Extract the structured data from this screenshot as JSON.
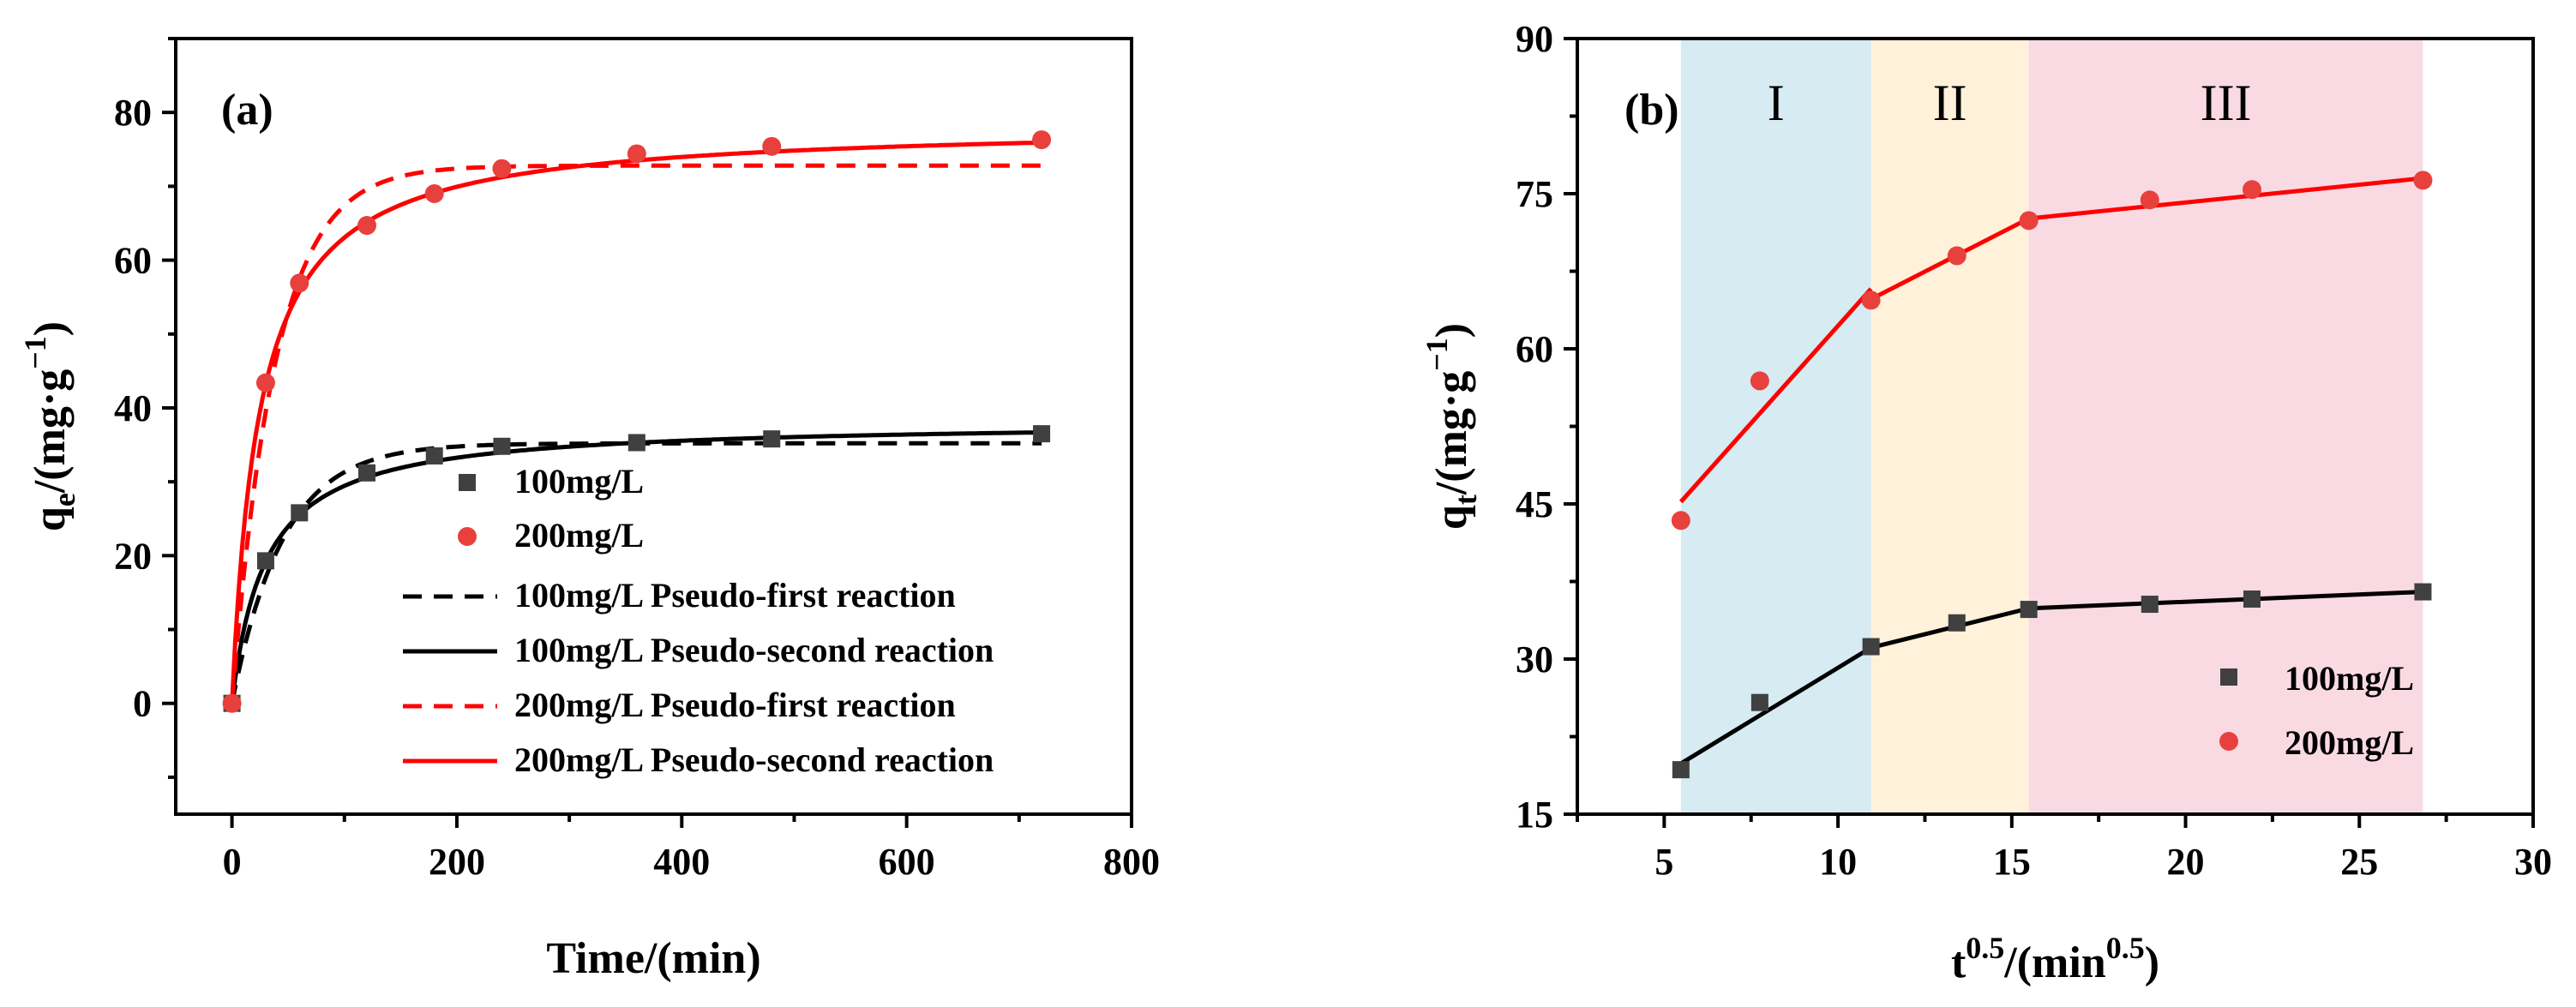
{
  "chart_data": [
    {
      "panel": "(a)",
      "type": "scatter",
      "xlabel": "Time/(min)",
      "ylabel_base": "q",
      "ylabel_sub": "e",
      "ylabel_unit": "/(mg·g",
      "ylabel_sup": "−1",
      "ylabel_close": ")",
      "xlim": [
        -50,
        800
      ],
      "ylim": [
        -15,
        90
      ],
      "xticks": [
        0,
        200,
        400,
        600,
        800
      ],
      "yticks": [
        0,
        20,
        40,
        60,
        80
      ],
      "legend_position": "right-middle",
      "series": [
        {
          "name": "100mg/L",
          "kind": "points",
          "marker": "square",
          "color": "#404040",
          "x": [
            0,
            30,
            60,
            120,
            180,
            240,
            360,
            480,
            720
          ],
          "y": [
            0,
            19.3,
            25.8,
            31.2,
            33.5,
            34.8,
            35.3,
            35.8,
            36.5
          ]
        },
        {
          "name": "200mg/L",
          "kind": "points",
          "marker": "circle",
          "color": "#e8413d",
          "x": [
            0,
            30,
            60,
            120,
            180,
            240,
            360,
            480,
            720
          ],
          "y": [
            0,
            43.4,
            56.9,
            64.7,
            69.0,
            72.4,
            74.4,
            75.4,
            76.3
          ]
        },
        {
          "name": "100mg/L Pseudo-first reaction",
          "kind": "line",
          "dash": true,
          "color": "#000000",
          "model": "pfo",
          "qe": 35.2,
          "k": 0.022
        },
        {
          "name": "100mg/L Pseudo-second reaction",
          "kind": "line",
          "dash": false,
          "color": "#000000",
          "model": "pso",
          "qe": 38.2,
          "k": 0.00088
        },
        {
          "name": "200mg/L Pseudo-first reaction",
          "kind": "line",
          "dash": true,
          "color": "#ff0000",
          "model": "pfo",
          "qe": 72.8,
          "k": 0.026
        },
        {
          "name": "200mg/L Pseudo-second reaction",
          "kind": "line",
          "dash": false,
          "color": "#ff0000",
          "model": "pso",
          "qe": 78.5,
          "k": 0.00052
        }
      ]
    },
    {
      "panel": "(b)",
      "type": "scatter",
      "xlabel_base": "t",
      "xlabel_sup": "0.5",
      "xlabel_mid": "/(min",
      "xlabel_sup2": "0.5",
      "xlabel_close": ")",
      "ylabel_base": "q",
      "ylabel_sub": "t",
      "ylabel_unit": "/(mg·g",
      "ylabel_sup": "−1",
      "ylabel_close": ")",
      "xlim": [
        2.5,
        30
      ],
      "ylim": [
        15,
        90
      ],
      "xticks": [
        5,
        10,
        15,
        20,
        25,
        30
      ],
      "yticks": [
        15,
        30,
        45,
        60,
        75,
        90
      ],
      "legend_position": "bottom-right",
      "regions": [
        {
          "label": "I",
          "from": 5.48,
          "to": 10.95,
          "color": "#add8e6"
        },
        {
          "label": "II",
          "from": 10.95,
          "to": 15.49,
          "color": "#ffe4b5"
        },
        {
          "label": "III",
          "from": 15.49,
          "to": 26.83,
          "color": "#f4b6c8"
        }
      ],
      "series": [
        {
          "name": "100mg/L",
          "kind": "points",
          "marker": "square",
          "color": "#404040",
          "x": [
            5.48,
            7.75,
            10.95,
            13.42,
            15.49,
            18.97,
            21.91,
            26.83
          ],
          "y": [
            19.3,
            25.8,
            31.2,
            33.5,
            34.8,
            35.3,
            35.8,
            36.5
          ]
        },
        {
          "name": "200mg/L",
          "kind": "points",
          "marker": "circle",
          "color": "#e8413d",
          "x": [
            5.48,
            7.75,
            10.95,
            13.42,
            15.49,
            18.97,
            21.91,
            26.83
          ],
          "y": [
            43.4,
            56.9,
            64.7,
            69.0,
            72.4,
            74.4,
            75.4,
            76.3
          ]
        },
        {
          "name": "100mg/L fit",
          "kind": "segments",
          "color": "#000000",
          "segments": [
            {
              "x": [
                5.48,
                10.95
              ],
              "y": [
                19.9,
                31.1
              ]
            },
            {
              "x": [
                10.95,
                15.49
              ],
              "y": [
                31.1,
                34.9
              ]
            },
            {
              "x": [
                15.49,
                26.83
              ],
              "y": [
                34.9,
                36.5
              ]
            }
          ]
        },
        {
          "name": "200mg/L fit",
          "kind": "segments",
          "color": "#ff0000",
          "segments": [
            {
              "x": [
                5.48,
                10.95
              ],
              "y": [
                45.2,
                65.8
              ]
            },
            {
              "x": [
                10.95,
                15.49
              ],
              "y": [
                64.8,
                72.6
              ]
            },
            {
              "x": [
                15.49,
                26.83
              ],
              "y": [
                72.6,
                76.5
              ]
            }
          ]
        }
      ]
    }
  ]
}
